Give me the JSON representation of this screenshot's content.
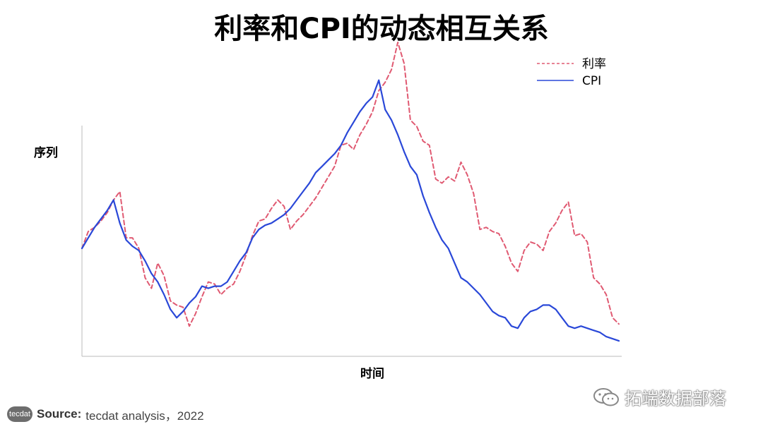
{
  "chart_data": {
    "type": "line",
    "title": "利率和CPI的动态相互关系",
    "xlabel": "时间",
    "ylabel": "序列",
    "x_ticks": "none",
    "y_ticks": "none",
    "legend": "top-right",
    "grid": false,
    "series": [
      {
        "name": "利率",
        "style": "dashed",
        "color": "#e05a72",
        "values": [
          0.47,
          0.55,
          0.57,
          0.6,
          0.64,
          0.7,
          0.74,
          0.52,
          0.52,
          0.47,
          0.33,
          0.28,
          0.4,
          0.34,
          0.22,
          0.2,
          0.19,
          0.1,
          0.16,
          0.24,
          0.31,
          0.3,
          0.25,
          0.28,
          0.3,
          0.36,
          0.44,
          0.53,
          0.6,
          0.61,
          0.66,
          0.7,
          0.67,
          0.56,
          0.6,
          0.63,
          0.67,
          0.71,
          0.76,
          0.81,
          0.86,
          0.96,
          0.97,
          0.94,
          1.01,
          1.06,
          1.12,
          1.22,
          1.26,
          1.32,
          1.45,
          1.35,
          1.08,
          1.05,
          0.98,
          0.96,
          0.8,
          0.78,
          0.81,
          0.79,
          0.88,
          0.82,
          0.73,
          0.56,
          0.57,
          0.55,
          0.54,
          0.48,
          0.4,
          0.36,
          0.46,
          0.5,
          0.49,
          0.46,
          0.55,
          0.59,
          0.65,
          0.69,
          0.53,
          0.54,
          0.5,
          0.33,
          0.3,
          0.25,
          0.14,
          0.11
        ]
      },
      {
        "name": "CPI",
        "style": "solid",
        "color": "#2a48d8",
        "values": [
          0.47,
          0.52,
          0.57,
          0.61,
          0.65,
          0.7,
          0.59,
          0.51,
          0.48,
          0.46,
          0.41,
          0.35,
          0.31,
          0.25,
          0.18,
          0.14,
          0.17,
          0.21,
          0.24,
          0.29,
          0.28,
          0.29,
          0.29,
          0.31,
          0.36,
          0.41,
          0.45,
          0.52,
          0.56,
          0.58,
          0.59,
          0.61,
          0.63,
          0.66,
          0.7,
          0.74,
          0.78,
          0.83,
          0.86,
          0.89,
          0.92,
          0.96,
          1.02,
          1.07,
          1.12,
          1.16,
          1.19,
          1.27,
          1.13,
          1.08,
          1.01,
          0.93,
          0.86,
          0.82,
          0.72,
          0.64,
          0.57,
          0.51,
          0.47,
          0.4,
          0.33,
          0.31,
          0.28,
          0.25,
          0.21,
          0.17,
          0.15,
          0.14,
          0.1,
          0.09,
          0.14,
          0.17,
          0.18,
          0.2,
          0.2,
          0.18,
          0.14,
          0.1,
          0.09,
          0.1,
          0.09,
          0.08,
          0.07,
          0.05,
          0.04,
          0.03
        ]
      }
    ]
  },
  "source": {
    "logo_text": "tecdat",
    "label": "Source:",
    "text": "tecdat analysis，2022"
  },
  "watermark": {
    "text": "拓端数据部落"
  }
}
